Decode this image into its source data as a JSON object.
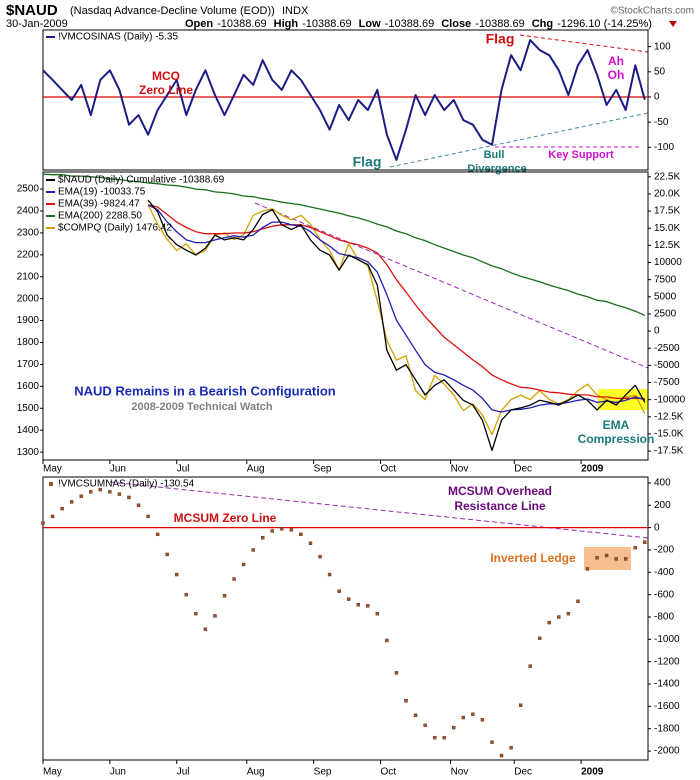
{
  "header": {
    "title": "$NAUD",
    "subtitle": "(Nasdaq Advance-Decline Volume (EOD))",
    "exchange": "INDX",
    "date": "30-Jan-2009",
    "stats": [
      {
        "label": "Open",
        "value": "-10388.69"
      },
      {
        "label": "High",
        "value": "-10388.69"
      },
      {
        "label": "Low",
        "value": "-10388.69"
      },
      {
        "label": "Close",
        "value": "-10388.69"
      },
      {
        "label": "Chg",
        "value": "-1296.10 (-14.25%)"
      }
    ],
    "credit": "©StockCharts.com"
  },
  "chart_data": [
    {
      "type": "line",
      "xlim": [
        0,
        190
      ],
      "x": [
        0,
        3,
        6,
        9,
        12,
        15,
        18,
        21,
        24,
        27,
        30,
        33,
        36,
        39,
        42,
        45,
        48,
        51,
        54,
        57,
        60,
        63,
        66,
        69,
        72,
        75,
        78,
        81,
        84,
        87,
        90,
        93,
        96,
        99,
        102,
        105,
        108,
        111,
        114,
        117,
        120,
        123,
        126,
        129,
        132,
        135,
        138,
        141,
        144,
        147,
        150,
        153,
        156,
        159,
        162,
        165,
        168,
        171,
        174,
        177,
        180,
        183,
        186,
        189
      ],
      "ylim": [
        -145,
        133
      ],
      "yticks": [
        100,
        50,
        0,
        -50,
        -100
      ],
      "reference_line": 0,
      "reference_color": "#e00000",
      "series": [
        {
          "name": "!VMCOSINAS (Daily) -5.35",
          "color": "#1c1c84",
          "values": [
            53,
            34,
            14,
            -6,
            24,
            -36,
            34,
            53,
            14,
            -55,
            -36,
            -75,
            -26,
            4,
            34,
            -36,
            14,
            53,
            4,
            -36,
            4,
            44,
            24,
            73,
            34,
            14,
            53,
            34,
            4,
            -26,
            -65,
            -16,
            -46,
            -6,
            -26,
            14,
            -75,
            -125,
            -65,
            4,
            -36,
            4,
            -26,
            -6,
            -46,
            -55,
            -85,
            -95,
            14,
            83,
            53,
            113,
            93,
            83,
            53,
            4,
            63,
            93,
            44,
            -16,
            14,
            -26,
            63,
            -5.35
          ]
        }
      ],
      "annotations": [
        {
          "text": [
            "Flag"
          ],
          "color": "#d01010"
        },
        {
          "text": [
            "Flag"
          ],
          "color": "#1a7a7a"
        },
        {
          "text": [
            "MCO",
            "Zero Line"
          ],
          "color": "#d01010"
        },
        {
          "text": [
            "Ah",
            "Oh"
          ],
          "color": "#d010d0"
        },
        {
          "text": [
            "Bull",
            "Divergence"
          ],
          "color": "#1a7a7a"
        },
        {
          "text": [
            "Key Support"
          ],
          "color": "#d010d0"
        }
      ]
    },
    {
      "type": "line",
      "xlim": [
        0,
        190
      ],
      "x": [
        0,
        3,
        6,
        9,
        12,
        15,
        18,
        21,
        24,
        27,
        30,
        33,
        36,
        39,
        42,
        45,
        48,
        51,
        54,
        57,
        60,
        63,
        66,
        69,
        72,
        75,
        78,
        81,
        84,
        87,
        90,
        93,
        96,
        99,
        102,
        105,
        108,
        111,
        114,
        117,
        120,
        123,
        126,
        129,
        132,
        135,
        138,
        141,
        144,
        147,
        150,
        153,
        156,
        159,
        162,
        165,
        168,
        171,
        174,
        177,
        180,
        183,
        186,
        189
      ],
      "xticks": [
        {
          "value": 0,
          "label": "May"
        },
        {
          "value": 21,
          "label": "Jun"
        },
        {
          "value": 42,
          "label": "Jul"
        },
        {
          "value": 64,
          "label": "Aug"
        },
        {
          "value": 85,
          "label": "Sep"
        },
        {
          "value": 106,
          "label": "Oct"
        },
        {
          "value": 128,
          "label": "Nov"
        },
        {
          "value": 148,
          "label": "Dec"
        },
        {
          "value": 169,
          "label": "2009"
        }
      ],
      "ylim": [
        1264,
        2578
      ],
      "yticks": [
        2500,
        2400,
        2300,
        2200,
        2100,
        2000,
        1900,
        1800,
        1700,
        1600,
        1500,
        1400,
        1300
      ],
      "y2lim": [
        -18800,
        23200
      ],
      "y2ticks": [
        {
          "value": 22500,
          "label": "22.5K"
        },
        {
          "value": 20000,
          "label": "20.0K"
        },
        {
          "value": 17500,
          "label": "17.5K"
        },
        {
          "value": 15000,
          "label": "15.0K"
        },
        {
          "value": 12500,
          "label": "12.5K"
        },
        10000,
        7500,
        5000,
        2500,
        0,
        -2500,
        -5000,
        -7500,
        -10000,
        {
          "value": -12500,
          "label": "-12.5K"
        },
        {
          "value": -15000,
          "label": "-15.0K"
        },
        {
          "value": -17500,
          "label": "-17.5K"
        }
      ],
      "series": [
        {
          "name": "$NAUD (Daily) Cumulative -10388.69",
          "color": "#000000",
          "axis": "y2",
          "values": [
            null,
            null,
            null,
            null,
            null,
            null,
            null,
            null,
            null,
            null,
            null,
            19100,
            17400,
            14000,
            12600,
            11800,
            11100,
            12100,
            14000,
            13300,
            13600,
            13300,
            14800,
            17000,
            17700,
            15500,
            14800,
            15500,
            13300,
            11800,
            11100,
            8900,
            11100,
            10400,
            9700,
            6700,
            -2800,
            -5700,
            -4900,
            -7100,
            -9300,
            -7900,
            -7100,
            -8600,
            -10100,
            -10800,
            -13000,
            -17400,
            -13000,
            -11500,
            -11200,
            -10800,
            -10100,
            -10400,
            -10800,
            -10100,
            -9300,
            -10100,
            -11500,
            -10100,
            -10800,
            -9300,
            -7900,
            -10388.69
          ]
        },
        {
          "name": "EMA(19) -10033.75",
          "color": "#1f1fb4",
          "axis": "y2",
          "values": [
            null,
            null,
            null,
            null,
            null,
            null,
            null,
            null,
            null,
            null,
            null,
            18400,
            17700,
            15900,
            14500,
            13300,
            12900,
            12900,
            13300,
            13600,
            13900,
            13700,
            14000,
            15100,
            15900,
            15900,
            15500,
            15300,
            14500,
            13300,
            12400,
            11300,
            11000,
            10700,
            10100,
            8600,
            5300,
            1600,
            -600,
            -2800,
            -4900,
            -6000,
            -6400,
            -7100,
            -7900,
            -8600,
            -9800,
            -11500,
            -11800,
            -11500,
            -11400,
            -11200,
            -10800,
            -10600,
            -10600,
            -10400,
            -10100,
            -9900,
            -10400,
            -10200,
            -10400,
            -10100,
            -9600,
            -10033.75
          ]
        },
        {
          "name": "EMA(39) -9824.47",
          "color": "#e01010",
          "axis": "y2",
          "values": [
            null,
            null,
            null,
            null,
            null,
            null,
            null,
            null,
            null,
            null,
            null,
            18400,
            18100,
            17000,
            15900,
            15100,
            14500,
            14200,
            14200,
            14200,
            14300,
            14300,
            14500,
            14900,
            15300,
            15500,
            15500,
            15500,
            15100,
            14500,
            13900,
            13300,
            12900,
            12600,
            12100,
            11400,
            9700,
            7500,
            5700,
            3800,
            2100,
            600,
            -900,
            -2000,
            -3100,
            -4200,
            -5200,
            -6400,
            -7100,
            -7700,
            -8200,
            -8300,
            -8600,
            -8900,
            -9000,
            -9200,
            -9300,
            -9300,
            -9600,
            -9600,
            -9800,
            -9800,
            -9800,
            -9824.47
          ]
        },
        {
          "name": "EMA(200) 2288.50",
          "color": "#1a6e1a",
          "axis": "y2",
          "values": [
            22900,
            22800,
            22800,
            22600,
            22600,
            22500,
            22400,
            22200,
            22100,
            21900,
            21800,
            21600,
            21500,
            21300,
            21200,
            21000,
            20700,
            20600,
            20300,
            20200,
            20000,
            19700,
            19600,
            19300,
            19100,
            18800,
            18600,
            18400,
            18100,
            17800,
            17500,
            17200,
            16800,
            16500,
            16100,
            15600,
            15200,
            14600,
            14200,
            13600,
            13200,
            12600,
            12100,
            11600,
            11100,
            10700,
            10100,
            9500,
            9100,
            8500,
            8000,
            7600,
            7200,
            6700,
            6300,
            5900,
            5400,
            5000,
            4500,
            4300,
            3800,
            3400,
            2900,
            2288.5
          ]
        },
        {
          "name": "$COMPQ (Daily) 1476.42",
          "color": "#d4a000",
          "values": [
            null,
            null,
            null,
            null,
            null,
            null,
            null,
            null,
            null,
            null,
            null,
            2430,
            2340,
            2270,
            2220,
            2250,
            2200,
            2220,
            2290,
            2300,
            2270,
            2290,
            2380,
            2400,
            2410,
            2380,
            2360,
            2380,
            2340,
            2270,
            2220,
            2130,
            2250,
            2180,
            2150,
            1990,
            1810,
            1720,
            1740,
            1580,
            1540,
            1650,
            1610,
            1560,
            1490,
            1520,
            1470,
            1380,
            1490,
            1540,
            1560,
            1540,
            1580,
            1540,
            1520,
            1540,
            1580,
            1610,
            1560,
            1540,
            1520,
            1550,
            1560,
            1476.42
          ]
        }
      ],
      "annotations": [
        {
          "text": [
            "NAUD Remains in a Bearish Configuration"
          ],
          "color": "#1c2cb4"
        },
        {
          "text": [
            "2008-2009 Technical Watch"
          ],
          "color": "#808080"
        },
        {
          "text": [
            "EMA",
            "Compression"
          ],
          "color": "#1a7a7a"
        }
      ]
    },
    {
      "type": "scatter",
      "xlim": [
        0,
        190
      ],
      "x": [
        0,
        3,
        6,
        9,
        12,
        15,
        18,
        21,
        24,
        27,
        30,
        33,
        36,
        39,
        42,
        45,
        48,
        51,
        54,
        57,
        60,
        63,
        66,
        69,
        72,
        75,
        78,
        81,
        84,
        87,
        90,
        93,
        96,
        99,
        102,
        105,
        108,
        111,
        114,
        117,
        120,
        123,
        126,
        129,
        132,
        135,
        138,
        141,
        144,
        147,
        150,
        153,
        156,
        159,
        162,
        165,
        168,
        171,
        174,
        177,
        180,
        183,
        186,
        189
      ],
      "xticks": [
        {
          "value": 0,
          "label": "May"
        },
        {
          "value": 21,
          "label": "Jun"
        },
        {
          "value": 42,
          "label": "Jul"
        },
        {
          "value": 64,
          "label": "Aug"
        },
        {
          "value": 85,
          "label": "Sep"
        },
        {
          "value": 106,
          "label": "Oct"
        },
        {
          "value": 128,
          "label": "Nov"
        },
        {
          "value": 148,
          "label": "Dec"
        },
        {
          "value": 169,
          "label": "2009"
        }
      ],
      "ylim": [
        -2080,
        453
      ],
      "yticks": [
        400,
        200,
        0,
        -200,
        -400,
        -600,
        -800,
        -1000,
        -1200,
        -1400,
        -1600,
        -1800,
        -2000
      ],
      "reference_line": 0,
      "reference_color": "#e00000",
      "series": [
        {
          "name": "!VMCSUMNAS (Daily) -130.54",
          "color": "#a0522d",
          "values": [
            40,
            100,
            170,
            230,
            280,
            320,
            340,
            320,
            300,
            270,
            200,
            100,
            -60,
            -240,
            -420,
            -600,
            -770,
            -910,
            -790,
            -610,
            -460,
            -330,
            -200,
            -90,
            -30,
            -10,
            -20,
            -60,
            -140,
            -260,
            -420,
            -570,
            -640,
            -690,
            -700,
            -770,
            -1010,
            -1300,
            -1550,
            -1680,
            -1770,
            -1880,
            -1880,
            -1790,
            -1700,
            -1670,
            -1720,
            -1920,
            -2040,
            -1970,
            -1590,
            -1240,
            -990,
            -850,
            -800,
            -770,
            -660,
            -370,
            -270,
            -250,
            -280,
            -280,
            -180,
            -130.54
          ]
        }
      ],
      "annotations": [
        {
          "text": [
            "MCSUM Zero Line"
          ],
          "color": "#d01010"
        },
        {
          "text": [
            "MCSUM Overhead",
            "Resistance Line"
          ],
          "color": "#6a0a7a"
        },
        {
          "text": [
            "Inverted Ledge"
          ],
          "color": "#e07020"
        }
      ]
    }
  ]
}
